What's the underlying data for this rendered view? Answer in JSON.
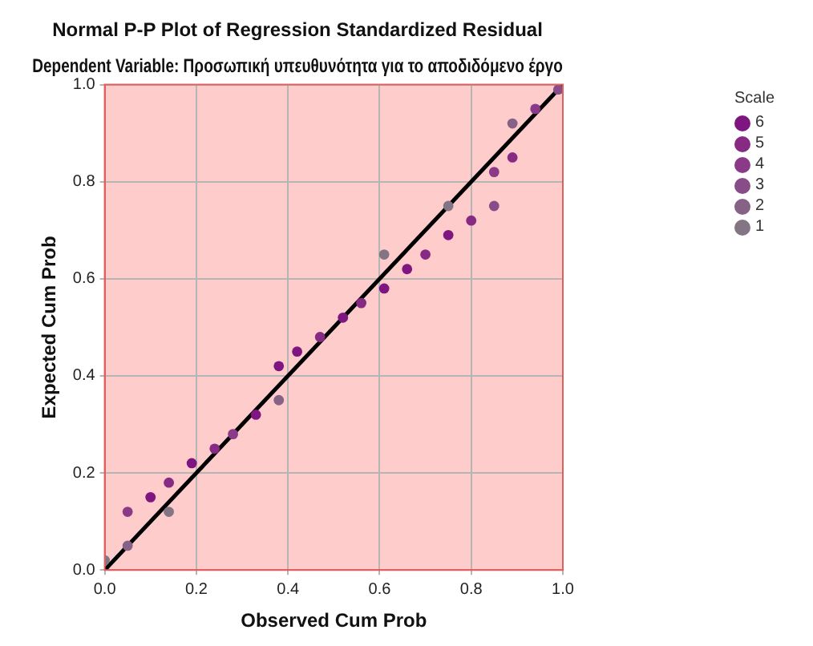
{
  "chart_data": {
    "type": "scatter",
    "title": "Normal P-P Plot of Regression Standardized Residual",
    "subtitle": "Dependent Variable: Προσωπική υπευθυνότητα για το αποδιδόμενο έργο",
    "xlabel": "Observed Cum Prob",
    "ylabel": "Expected Cum Prob",
    "legend_title": "Scale",
    "legend": "top right",
    "grid": true,
    "marker": "circle",
    "xlim": [
      0,
      1
    ],
    "ylim": [
      0,
      1
    ],
    "xticks": [
      {
        "value": 0,
        "label": "0.0"
      },
      {
        "value": 0.2,
        "label": "0.2"
      },
      {
        "value": 0.4,
        "label": "0.4"
      },
      {
        "value": 0.6,
        "label": "0.6"
      },
      {
        "value": 0.8,
        "label": "0.8"
      },
      {
        "value": 1,
        "label": "1.0"
      }
    ],
    "yticks": [
      {
        "value": 0,
        "label": "0.0"
      },
      {
        "value": 0.2,
        "label": "0.2"
      },
      {
        "value": 0.4,
        "label": "0.4"
      },
      {
        "value": 0.6,
        "label": "0.6"
      },
      {
        "value": 0.8,
        "label": "0.8"
      },
      {
        "value": 1,
        "label": "1.0"
      }
    ],
    "series": [
      {
        "name": "6",
        "color": "#7f1580",
        "x": [
          0.1,
          0.19,
          0.33,
          0.38,
          0.42,
          0.52,
          0.61,
          0.66,
          0.75
        ],
        "values": [
          0.15,
          0.22,
          0.32,
          0.42,
          0.45,
          0.52,
          0.58,
          0.62,
          0.69
        ]
      },
      {
        "name": "5",
        "color": "#862a84",
        "x": [
          0.14,
          0.24,
          0.47,
          0.56,
          0.7,
          0.8,
          0.89
        ],
        "values": [
          0.18,
          0.25,
          0.48,
          0.55,
          0.65,
          0.72,
          0.85
        ]
      },
      {
        "name": "4",
        "color": "#8a3a87",
        "x": [
          0.05,
          0.28,
          0.85,
          0.94
        ],
        "values": [
          0.12,
          0.28,
          0.82,
          0.95
        ]
      },
      {
        "name": "3",
        "color": "#884d88",
        "x": [
          0.85,
          0.99
        ],
        "values": [
          0.75,
          0.99
        ]
      },
      {
        "name": "2",
        "color": "#866386",
        "x": [
          0.05,
          0.38,
          0.89
        ],
        "values": [
          0.05,
          0.35,
          0.92
        ]
      },
      {
        "name": "1",
        "color": "#837583",
        "x": [
          0,
          0.14,
          0.61,
          0.75
        ],
        "values": [
          0.02,
          0.12,
          0.65,
          0.75
        ]
      },
      {
        "type": "line",
        "color": "#000000",
        "x": [
          0,
          1
        ],
        "values": [
          0,
          1
        ],
        "marker": "none",
        "line_style": "solid"
      }
    ]
  }
}
